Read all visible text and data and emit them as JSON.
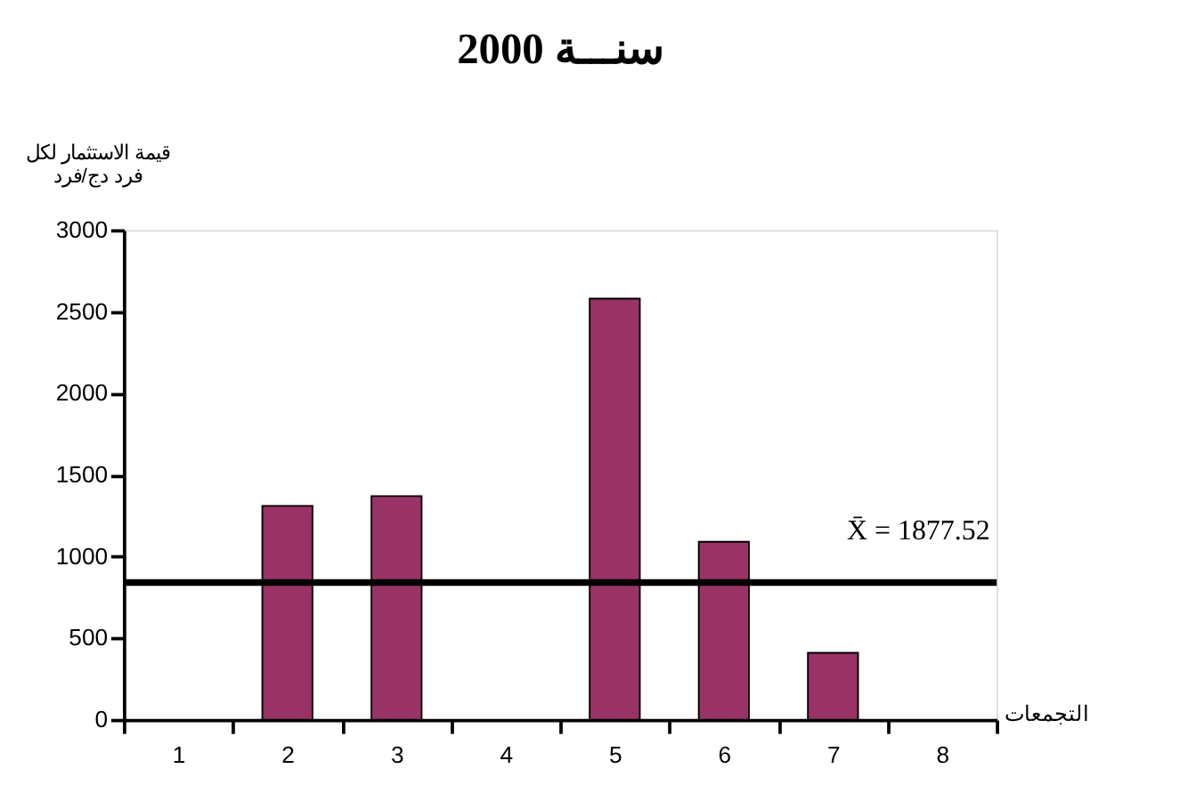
{
  "chart_data": {
    "type": "bar",
    "title": "سنـــة 2000",
    "xlabel": "التجمعات",
    "ylabel": "قيمة الاستثمار لكل\nفرد دج/فرد",
    "categories": [
      "1",
      "2",
      "3",
      "4",
      "5",
      "6",
      "7",
      "8"
    ],
    "values": [
      null,
      1310,
      1370,
      null,
      2580,
      1090,
      410,
      null
    ],
    "color": "#993366",
    "ylim": [
      0,
      3000
    ],
    "yticks": [
      0,
      500,
      1000,
      1500,
      2000,
      2500,
      3000
    ],
    "grid": false,
    "annotations": [
      "X̄  = 1877.52"
    ],
    "ref_lines": [
      {
        "axis": "y",
        "value": 840,
        "color": "#000000",
        "line_style": "solid"
      }
    ]
  }
}
